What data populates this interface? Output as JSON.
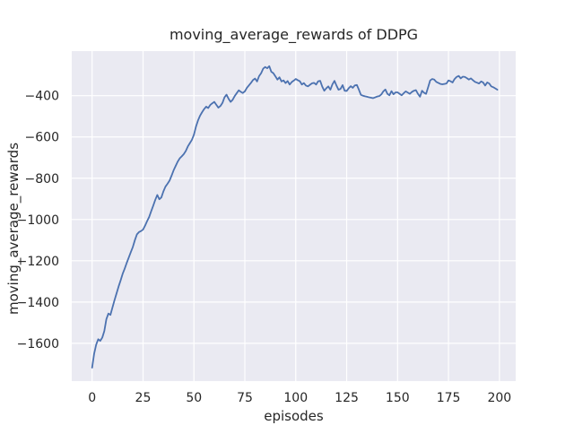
{
  "figure": {
    "background_color": "#ffffff",
    "plot_background_color": "#eaeaf2",
    "grid_color": "#ffffff",
    "text_color": "#262626",
    "line_color": "#4c72b0"
  },
  "chart_data": {
    "type": "line",
    "title": "moving_average_rewards of DDPG",
    "xlabel": "episodes",
    "ylabel": "moving_average_rewards",
    "x_ticks": [
      0,
      25,
      50,
      75,
      100,
      125,
      150,
      175,
      200
    ],
    "y_ticks": [
      -400,
      -600,
      -800,
      -1000,
      -1200,
      -1400,
      -1600
    ],
    "xlim": [
      -10,
      208
    ],
    "ylim": [
      -1783,
      -184
    ],
    "grid": true,
    "legend": false,
    "series": [
      {
        "name": "moving_average_rewards",
        "x_start": 0,
        "x_step": 1,
        "values": [
          -1718,
          -1650,
          -1606,
          -1580,
          -1588,
          -1572,
          -1540,
          -1483,
          -1456,
          -1462,
          -1426,
          -1391,
          -1358,
          -1325,
          -1295,
          -1263,
          -1238,
          -1210,
          -1184,
          -1158,
          -1133,
          -1100,
          -1072,
          -1061,
          -1056,
          -1049,
          -1030,
          -1008,
          -988,
          -960,
          -933,
          -905,
          -881,
          -902,
          -893,
          -864,
          -841,
          -827,
          -812,
          -788,
          -762,
          -741,
          -720,
          -704,
          -694,
          -683,
          -668,
          -646,
          -630,
          -614,
          -589,
          -550,
          -520,
          -497,
          -480,
          -465,
          -453,
          -460,
          -445,
          -437,
          -430,
          -444,
          -458,
          -450,
          -435,
          -408,
          -395,
          -415,
          -430,
          -420,
          -402,
          -388,
          -374,
          -381,
          -387,
          -379,
          -362,
          -350,
          -338,
          -324,
          -317,
          -331,
          -305,
          -291,
          -269,
          -261,
          -267,
          -257,
          -284,
          -291,
          -306,
          -322,
          -311,
          -331,
          -326,
          -339,
          -329,
          -346,
          -334,
          -327,
          -319,
          -325,
          -330,
          -346,
          -339,
          -351,
          -355,
          -347,
          -340,
          -338,
          -346,
          -330,
          -328,
          -356,
          -376,
          -364,
          -355,
          -371,
          -345,
          -328,
          -351,
          -371,
          -367,
          -349,
          -376,
          -377,
          -364,
          -354,
          -362,
          -350,
          -348,
          -371,
          -396,
          -400,
          -403,
          -405,
          -408,
          -410,
          -412,
          -408,
          -404,
          -402,
          -394,
          -379,
          -370,
          -391,
          -398,
          -378,
          -393,
          -384,
          -384,
          -391,
          -398,
          -388,
          -379,
          -385,
          -391,
          -382,
          -376,
          -373,
          -391,
          -405,
          -376,
          -386,
          -391,
          -359,
          -326,
          -319,
          -322,
          -333,
          -338,
          -343,
          -345,
          -343,
          -341,
          -326,
          -330,
          -336,
          -319,
          -309,
          -304,
          -316,
          -308,
          -309,
          -315,
          -322,
          -316,
          -325,
          -333,
          -337,
          -341,
          -331,
          -336,
          -351,
          -336,
          -341,
          -355,
          -359,
          -365,
          -371
        ]
      }
    ]
  }
}
